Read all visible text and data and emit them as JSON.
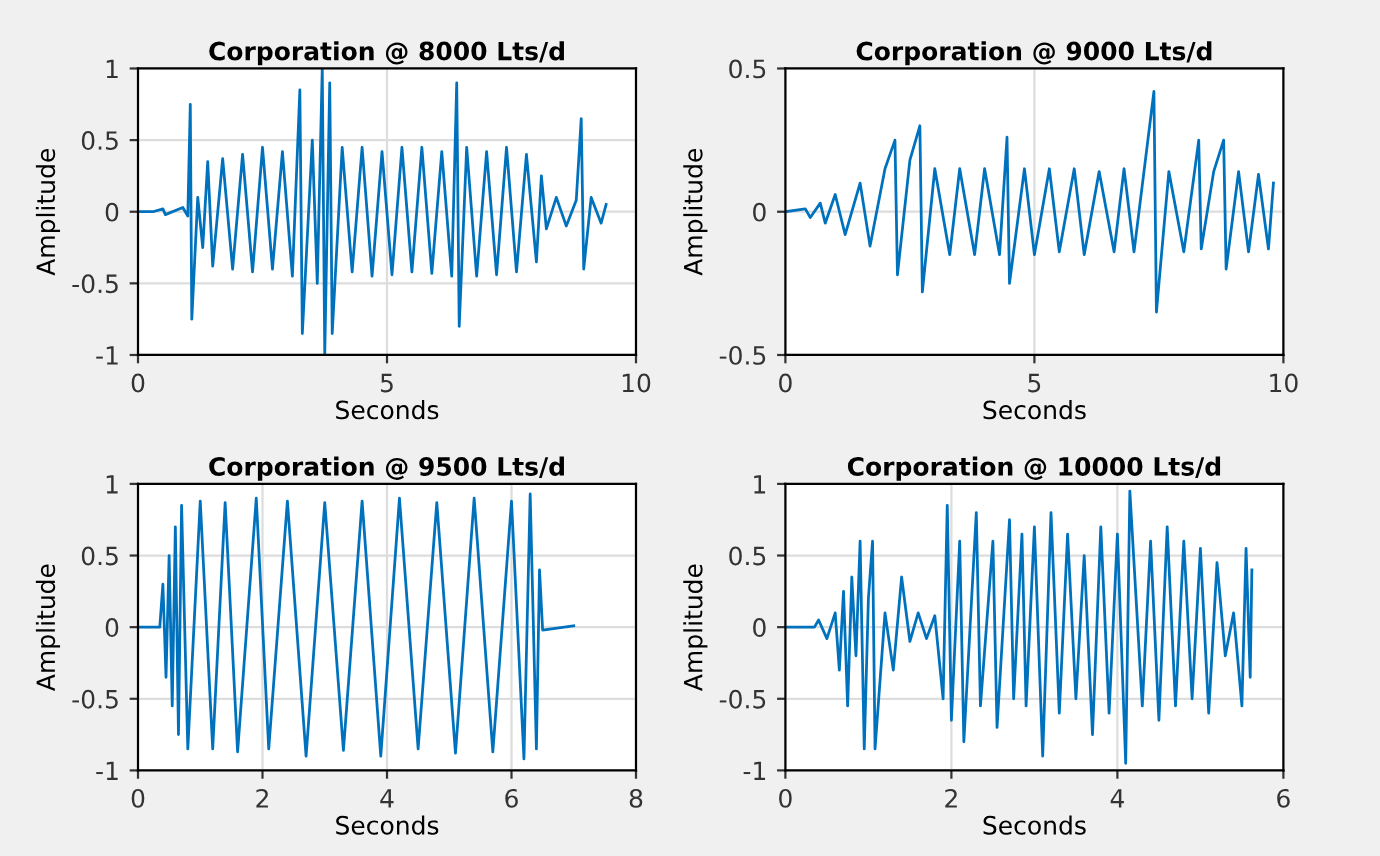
{
  "chart_data": [
    {
      "type": "line",
      "title": "Corporation @ 8000 Lts/d",
      "xlabel": "Seconds",
      "ylabel": "Amplitude",
      "xlim": [
        0,
        10
      ],
      "xticks": [
        0,
        5,
        10
      ],
      "ylim": [
        -1,
        1
      ],
      "yticks": [
        -1,
        -0.5,
        0,
        0.5,
        1
      ],
      "grid": true,
      "marker": "none",
      "line_style": "solid",
      "series": [
        {
          "color": "#0072bd",
          "x": [
            0,
            0.3,
            0.5,
            0.55,
            0.9,
            1.0,
            1.05,
            1.08,
            1.2,
            1.3,
            1.4,
            1.5,
            1.7,
            1.9,
            2.1,
            2.3,
            2.5,
            2.7,
            2.9,
            3.1,
            3.25,
            3.3,
            3.5,
            3.6,
            3.7,
            3.75,
            3.85,
            3.9,
            4.1,
            4.3,
            4.5,
            4.7,
            4.9,
            5.1,
            5.3,
            5.5,
            5.7,
            5.9,
            6.1,
            6.3,
            6.4,
            6.45,
            6.6,
            6.8,
            7.0,
            7.2,
            7.4,
            7.6,
            7.8,
            8.0,
            8.1,
            8.2,
            8.4,
            8.6,
            8.8,
            8.9,
            8.95,
            9.1,
            9.3,
            9.4
          ],
          "values": [
            0,
            0,
            0.02,
            -0.02,
            0.03,
            -0.03,
            0.75,
            -0.75,
            0.1,
            -0.25,
            0.35,
            -0.38,
            0.37,
            -0.4,
            0.4,
            -0.42,
            0.45,
            -0.4,
            0.42,
            -0.45,
            0.85,
            -0.85,
            0.5,
            -0.5,
            1.0,
            -1.0,
            0.9,
            -0.85,
            0.45,
            -0.42,
            0.45,
            -0.45,
            0.42,
            -0.44,
            0.45,
            -0.42,
            0.45,
            -0.43,
            0.42,
            -0.45,
            0.9,
            -0.8,
            0.45,
            -0.45,
            0.42,
            -0.44,
            0.45,
            -0.42,
            0.4,
            -0.35,
            0.25,
            -0.12,
            0.1,
            -0.1,
            0.08,
            0.65,
            -0.4,
            0.1,
            -0.08,
            0.05
          ]
        }
      ]
    },
    {
      "type": "line",
      "title": "Corporation @ 9000 Lts/d",
      "xlabel": "Seconds",
      "ylabel": "Amplitude",
      "xlim": [
        0,
        10
      ],
      "xticks": [
        0,
        5,
        10
      ],
      "ylim": [
        -0.5,
        0.5
      ],
      "yticks": [
        -0.5,
        0,
        0.5
      ],
      "grid": true,
      "marker": "none",
      "line_style": "solid",
      "series": [
        {
          "color": "#0072bd",
          "x": [
            0,
            0.4,
            0.5,
            0.7,
            0.8,
            1.0,
            1.2,
            1.5,
            1.7,
            2.0,
            2.2,
            2.25,
            2.5,
            2.7,
            2.75,
            3.0,
            3.3,
            3.5,
            3.8,
            4.0,
            4.3,
            4.45,
            4.5,
            4.8,
            5.0,
            5.3,
            5.5,
            5.8,
            6.0,
            6.3,
            6.6,
            6.8,
            7.0,
            7.4,
            7.45,
            7.7,
            8.0,
            8.3,
            8.35,
            8.6,
            8.8,
            8.85,
            9.1,
            9.3,
            9.5,
            9.7,
            9.8
          ],
          "values": [
            0,
            0.01,
            -0.02,
            0.03,
            -0.04,
            0.06,
            -0.08,
            0.1,
            -0.12,
            0.15,
            0.25,
            -0.22,
            0.18,
            0.3,
            -0.28,
            0.15,
            -0.15,
            0.15,
            -0.15,
            0.15,
            -0.15,
            0.26,
            -0.25,
            0.15,
            -0.15,
            0.15,
            -0.14,
            0.15,
            -0.15,
            0.14,
            -0.14,
            0.15,
            -0.14,
            0.42,
            -0.35,
            0.14,
            -0.14,
            0.25,
            -0.13,
            0.14,
            0.25,
            -0.2,
            0.14,
            -0.14,
            0.13,
            -0.13,
            0.1
          ]
        }
      ]
    },
    {
      "type": "line",
      "title": "Corporation @ 9500 Lts/d",
      "xlabel": "Seconds",
      "ylabel": "Amplitude",
      "xlim": [
        0,
        8
      ],
      "xticks": [
        0,
        2,
        4,
        6,
        8
      ],
      "ylim": [
        -1,
        1
      ],
      "yticks": [
        -1,
        -0.5,
        0,
        0.5,
        1
      ],
      "grid": true,
      "marker": "none",
      "line_style": "solid",
      "series": [
        {
          "color": "#0072bd",
          "x": [
            0,
            0.35,
            0.4,
            0.45,
            0.5,
            0.55,
            0.6,
            0.65,
            0.7,
            0.8,
            1.0,
            1.2,
            1.4,
            1.6,
            1.9,
            2.1,
            2.4,
            2.7,
            3.0,
            3.3,
            3.6,
            3.9,
            4.2,
            4.5,
            4.8,
            5.1,
            5.4,
            5.7,
            6.0,
            6.2,
            6.3,
            6.4,
            6.45,
            6.5,
            7.0
          ],
          "values": [
            0,
            0,
            0.3,
            -0.35,
            0.5,
            -0.55,
            0.7,
            -0.75,
            0.85,
            -0.85,
            0.88,
            -0.85,
            0.87,
            -0.87,
            0.9,
            -0.85,
            0.88,
            -0.9,
            0.87,
            -0.86,
            0.88,
            -0.9,
            0.9,
            -0.85,
            0.87,
            -0.88,
            0.9,
            -0.87,
            0.88,
            -0.92,
            0.93,
            -0.85,
            0.4,
            -0.02,
            0.01
          ]
        }
      ]
    },
    {
      "type": "line",
      "title": "Corporation @ 10000 Lts/d",
      "xlabel": "Seconds",
      "ylabel": "Amplitude",
      "xlim": [
        0,
        6
      ],
      "xticks": [
        0,
        2,
        4,
        6
      ],
      "ylim": [
        -1,
        1
      ],
      "yticks": [
        -1,
        -0.5,
        0,
        0.5,
        1
      ],
      "grid": true,
      "marker": "none",
      "line_style": "solid",
      "series": [
        {
          "color": "#0072bd",
          "x": [
            0,
            0.35,
            0.4,
            0.5,
            0.6,
            0.65,
            0.7,
            0.75,
            0.8,
            0.85,
            0.9,
            0.95,
            1.0,
            1.05,
            1.08,
            1.2,
            1.3,
            1.4,
            1.5,
            1.6,
            1.7,
            1.8,
            1.9,
            1.95,
            2.0,
            2.1,
            2.15,
            2.3,
            2.35,
            2.5,
            2.55,
            2.7,
            2.75,
            2.85,
            2.9,
            3.0,
            3.1,
            3.2,
            3.3,
            3.4,
            3.5,
            3.6,
            3.7,
            3.8,
            3.9,
            4.0,
            4.1,
            4.15,
            4.3,
            4.4,
            4.5,
            4.6,
            4.7,
            4.8,
            4.9,
            5.0,
            5.1,
            5.2,
            5.3,
            5.4,
            5.5,
            5.55,
            5.6,
            5.62
          ],
          "values": [
            0,
            0,
            0.05,
            -0.08,
            0.1,
            -0.3,
            0.25,
            -0.55,
            0.35,
            -0.2,
            0.6,
            -0.85,
            0.2,
            0.6,
            -0.85,
            0.1,
            -0.3,
            0.35,
            -0.1,
            0.1,
            -0.08,
            0.08,
            -0.5,
            0.85,
            -0.65,
            0.6,
            -0.8,
            0.8,
            -0.55,
            0.6,
            -0.7,
            0.75,
            -0.5,
            0.65,
            -0.55,
            0.7,
            -0.9,
            0.8,
            -0.6,
            0.65,
            -0.5,
            0.5,
            -0.75,
            0.7,
            -0.6,
            0.65,
            -0.95,
            0.95,
            -0.55,
            0.6,
            -0.65,
            0.7,
            -0.55,
            0.6,
            -0.5,
            0.55,
            -0.6,
            0.45,
            -0.2,
            0.1,
            -0.55,
            0.55,
            -0.35,
            0.4
          ]
        }
      ]
    }
  ]
}
